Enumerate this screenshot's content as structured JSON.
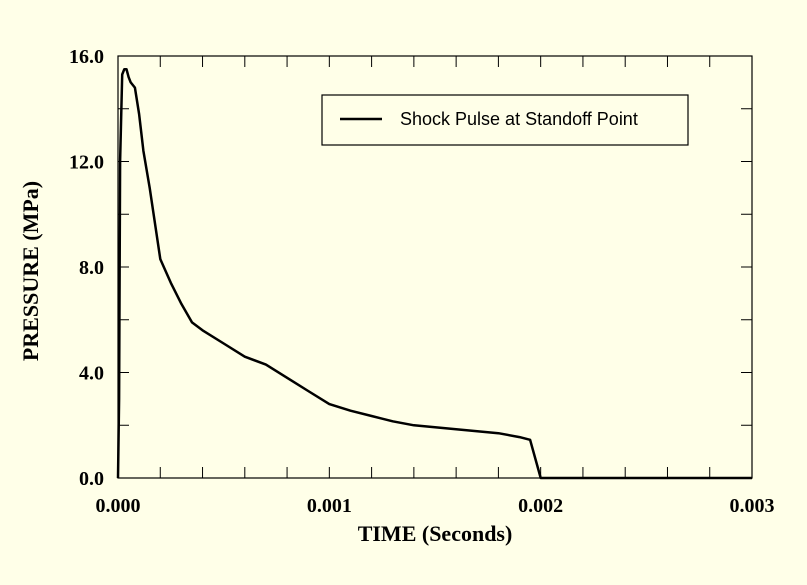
{
  "chart_data": {
    "type": "line",
    "title": "",
    "xlabel": "TIME (Seconds)",
    "ylabel": "PRESSURE (MPa)",
    "xlim": [
      0,
      0.003
    ],
    "ylim": [
      0,
      16
    ],
    "x_ticks": [
      {
        "value": 0,
        "label": "0.000"
      },
      {
        "value": 0.001,
        "label": "0.001"
      },
      {
        "value": 0.002,
        "label": "0.002"
      },
      {
        "value": 0.003,
        "label": "0.003"
      }
    ],
    "y_ticks": [
      {
        "value": 0,
        "label": "0.0"
      },
      {
        "value": 4,
        "label": "4.0"
      },
      {
        "value": 8,
        "label": "8.0"
      },
      {
        "value": 12,
        "label": "12.0"
      },
      {
        "value": 16,
        "label": "16.0"
      }
    ],
    "x_minor_step": 0.0002,
    "y_minor_step": 2,
    "grid": false,
    "legend_position": "top-right",
    "colors": {
      "line": "#000000",
      "background": "#ffffe8"
    },
    "series": [
      {
        "name": "Shock Pulse at Standoff Point",
        "x": [
          0,
          5e-06,
          1e-05,
          2e-05,
          3e-05,
          4e-05,
          5e-05,
          6e-05,
          8e-05,
          0.0001,
          0.00012,
          0.00015,
          0.0002,
          0.00025,
          0.0003,
          0.00035,
          0.0004,
          0.0005,
          0.0006,
          0.0007,
          0.0008,
          0.0009,
          0.001,
          0.0011,
          0.0012,
          0.0013,
          0.0014,
          0.0016,
          0.0018,
          0.0019,
          0.00195,
          0.002,
          0.0025,
          0.003
        ],
        "y": [
          0,
          3,
          12,
          15.3,
          15.5,
          15.5,
          15.2,
          15.0,
          14.8,
          13.8,
          12.4,
          11.0,
          8.3,
          7.4,
          6.6,
          5.9,
          5.6,
          5.1,
          4.6,
          4.3,
          3.8,
          3.3,
          2.8,
          2.55,
          2.35,
          2.15,
          2.0,
          1.85,
          1.7,
          1.55,
          1.45,
          0,
          0,
          0
        ]
      }
    ]
  }
}
